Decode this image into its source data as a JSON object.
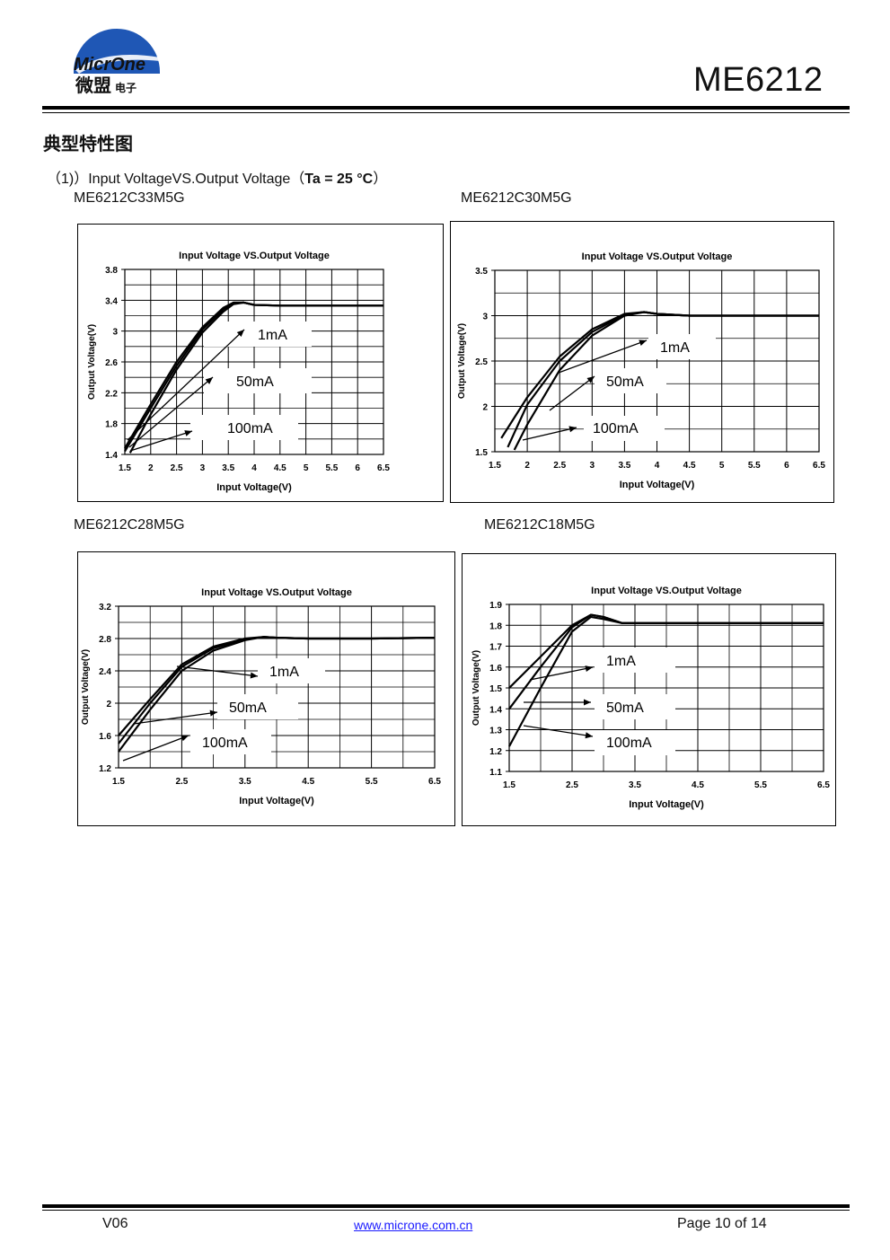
{
  "header": {
    "logo_text_en": "MicrOne",
    "logo_text_cn": "微盟",
    "logo_text_cn_small": "电子",
    "doc_title": "ME6212"
  },
  "section_title": "典型特性图",
  "subtitle": {
    "prefix": "（1)）Input VoltageVS.Output Voltage（",
    "condition": "Ta = 25 °C",
    "suffix": "）"
  },
  "parts": [
    "ME6212C33M5G",
    "ME6212C30M5G",
    "ME6212C28M5G",
    "ME6212C18M5G"
  ],
  "chart_data": [
    {
      "type": "line",
      "part": "ME6212C33M5G",
      "title": "Input Voltage VS.Output Voltage",
      "xlabel": "Input Voltage(V)",
      "ylabel": "Output Voltage(V)",
      "xlim": [
        1.5,
        6.5
      ],
      "ylim": [
        1.4,
        3.8
      ],
      "xticks": [
        "1.5",
        "2",
        "2.5",
        "3",
        "3.5",
        "4",
        "4.5",
        "5",
        "5.5",
        "6",
        "6.5"
      ],
      "yticks": [
        "1.4",
        "1.8",
        "2.2",
        "2.6",
        "3",
        "3.4",
        "3.8"
      ],
      "grid": true,
      "series": [
        {
          "name": "1mA",
          "x": [
            1.5,
            2.0,
            2.5,
            3.0,
            3.4,
            3.6,
            3.8,
            4.0,
            4.5,
            5.5,
            6.5
          ],
          "y": [
            1.48,
            2.05,
            2.6,
            3.05,
            3.3,
            3.37,
            3.37,
            3.34,
            3.33,
            3.33,
            3.33
          ]
        },
        {
          "name": "50mA",
          "x": [
            1.5,
            2.0,
            2.5,
            3.0,
            3.4,
            3.6,
            3.8,
            4.0,
            4.5,
            5.5,
            6.5
          ],
          "y": [
            1.44,
            2.0,
            2.55,
            3.02,
            3.28,
            3.36,
            3.37,
            3.34,
            3.33,
            3.33,
            3.33
          ]
        },
        {
          "name": "100mA",
          "x": [
            1.6,
            2.0,
            2.5,
            3.0,
            3.4,
            3.6,
            3.8,
            4.0,
            4.5,
            5.5,
            6.5
          ],
          "y": [
            1.42,
            1.92,
            2.5,
            2.98,
            3.25,
            3.35,
            3.37,
            3.34,
            3.33,
            3.33,
            3.33
          ]
        }
      ],
      "annotations": [
        "1mA",
        "50mA",
        "100mA"
      ]
    },
    {
      "type": "line",
      "part": "ME6212C30M5G",
      "title": "Input Voltage VS.Output Voltage",
      "xlabel": "Input Voltage(V)",
      "ylabel": "Output Voltage(V)",
      "xlim": [
        1.5,
        6.5
      ],
      "ylim": [
        1.5,
        3.5
      ],
      "xticks": [
        "1.5",
        "2",
        "2.5",
        "3",
        "3.5",
        "4",
        "4.5",
        "5",
        "5.5",
        "6",
        "6.5"
      ],
      "yticks": [
        "1.5",
        "2",
        "2.5",
        "3",
        "3.5"
      ],
      "grid": true,
      "series": [
        {
          "name": "1mA",
          "x": [
            1.6,
            2.0,
            2.5,
            3.0,
            3.5,
            3.8,
            4.0,
            4.5,
            5.5,
            6.5
          ],
          "y": [
            1.65,
            2.1,
            2.55,
            2.85,
            3.02,
            3.04,
            3.02,
            3.0,
            3.0,
            3.0
          ]
        },
        {
          "name": "50mA",
          "x": [
            1.7,
            2.0,
            2.5,
            3.0,
            3.5,
            3.8,
            4.0,
            4.5,
            5.5,
            6.5
          ],
          "y": [
            1.55,
            2.02,
            2.5,
            2.82,
            3.01,
            3.04,
            3.02,
            3.0,
            3.0,
            3.0
          ]
        },
        {
          "name": "100mA",
          "x": [
            1.8,
            2.0,
            2.5,
            3.0,
            3.5,
            3.8,
            4.0,
            4.5,
            5.5,
            6.5
          ],
          "y": [
            1.52,
            1.8,
            2.4,
            2.78,
            3.0,
            3.04,
            3.02,
            3.0,
            3.0,
            3.0
          ]
        }
      ],
      "annotations": [
        "1mA",
        "50mA",
        "100mA"
      ]
    },
    {
      "type": "line",
      "part": "ME6212C28M5G",
      "title": "Input Voltage VS.Output Voltage",
      "xlabel": "Input Voltage(V)",
      "ylabel": "Output Voltage(V)",
      "xlim": [
        1.5,
        6.5
      ],
      "ylim": [
        1.2,
        3.2
      ],
      "xticks": [
        "1.5",
        "2.5",
        "3.5",
        "4.5",
        "5.5",
        "6.5"
      ],
      "yticks": [
        "1.2",
        "1.6",
        "2",
        "2.4",
        "2.8",
        "3.2"
      ],
      "grid": true,
      "series": [
        {
          "name": "1mA",
          "x": [
            1.5,
            2.0,
            2.5,
            3.0,
            3.5,
            3.8,
            4.0,
            4.5,
            5.5,
            6.5
          ],
          "y": [
            1.6,
            2.05,
            2.48,
            2.7,
            2.8,
            2.82,
            2.81,
            2.8,
            2.8,
            2.81
          ]
        },
        {
          "name": "50mA",
          "x": [
            1.5,
            2.0,
            2.5,
            3.0,
            3.5,
            3.8,
            4.0,
            4.5,
            5.5,
            6.5
          ],
          "y": [
            1.5,
            2.0,
            2.45,
            2.68,
            2.79,
            2.82,
            2.81,
            2.8,
            2.8,
            2.81
          ]
        },
        {
          "name": "100mA",
          "x": [
            1.5,
            2.0,
            2.5,
            3.0,
            3.5,
            3.8,
            4.0,
            4.5,
            5.5,
            6.5
          ],
          "y": [
            1.4,
            1.92,
            2.4,
            2.65,
            2.78,
            2.82,
            2.81,
            2.8,
            2.8,
            2.81
          ]
        }
      ],
      "annotations": [
        "1mA",
        "50mA",
        "100mA"
      ]
    },
    {
      "type": "line",
      "part": "ME6212C18M5G",
      "title": "Input Voltage VS.Output Voltage",
      "xlabel": "Input Voltage(V)",
      "ylabel": "Output Voltage(V)",
      "xlim": [
        1.5,
        6.5
      ],
      "ylim": [
        1.1,
        1.9
      ],
      "xticks": [
        "1.5",
        "2.5",
        "3.5",
        "4.5",
        "5.5",
        "6.5"
      ],
      "yticks": [
        "1.1",
        "1.2",
        "1.3",
        "1.4",
        "1.5",
        "1.6",
        "1.7",
        "1.8",
        "1.9"
      ],
      "grid": true,
      "series": [
        {
          "name": "1mA",
          "x": [
            1.5,
            2.0,
            2.5,
            2.8,
            3.0,
            3.3,
            4.0,
            5.0,
            6.5
          ],
          "y": [
            1.5,
            1.65,
            1.8,
            1.85,
            1.84,
            1.81,
            1.81,
            1.81,
            1.81
          ]
        },
        {
          "name": "50mA",
          "x": [
            1.5,
            2.0,
            2.5,
            2.8,
            3.0,
            3.3,
            4.0,
            5.0,
            6.5
          ],
          "y": [
            1.4,
            1.6,
            1.79,
            1.85,
            1.84,
            1.81,
            1.81,
            1.81,
            1.81
          ]
        },
        {
          "name": "100mA",
          "x": [
            1.5,
            2.0,
            2.5,
            2.8,
            3.0,
            3.3,
            4.0,
            5.0,
            6.5
          ],
          "y": [
            1.22,
            1.5,
            1.77,
            1.84,
            1.83,
            1.81,
            1.81,
            1.81,
            1.81
          ]
        }
      ],
      "annotations": [
        "1mA",
        "50mA",
        "100mA"
      ]
    }
  ],
  "footer": {
    "version": "V06",
    "url": "www.microne.com.cn",
    "page": "Page 10 of 14"
  }
}
